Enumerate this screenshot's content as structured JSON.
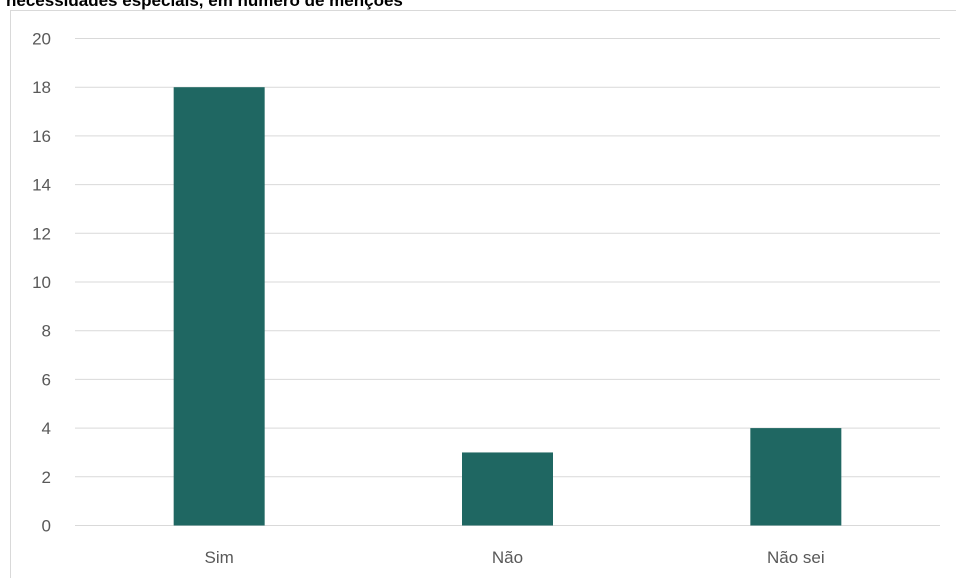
{
  "chart_data": {
    "type": "bar",
    "title": "necessidades especiais, em número de menções",
    "categories": [
      "Sim",
      "Não",
      "Não sei"
    ],
    "values": [
      18,
      3,
      4
    ],
    "ylim": [
      0,
      20
    ],
    "yticks": [
      0,
      2,
      4,
      6,
      8,
      10,
      12,
      14,
      16,
      18,
      20
    ],
    "xlabel": "",
    "ylabel": "",
    "grid": true,
    "legend": "none",
    "colors": {
      "bar": "#1f6762",
      "grid": "#d9d9d9",
      "tick_text": "#595959"
    }
  }
}
